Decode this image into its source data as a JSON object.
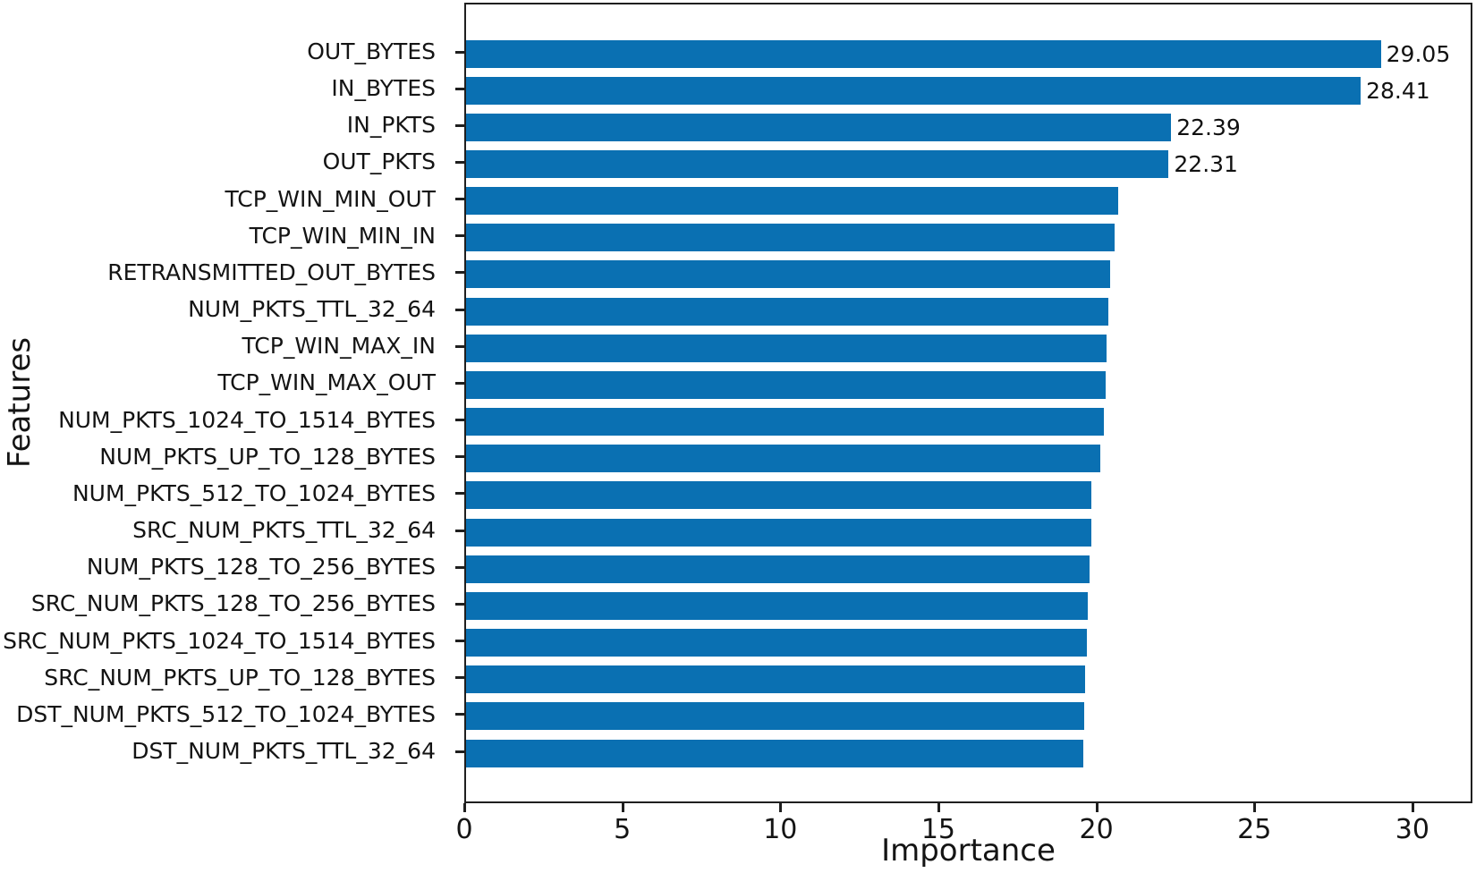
{
  "chart_data": {
    "type": "bar",
    "orientation": "horizontal",
    "title": "",
    "xlabel": "Importance",
    "ylabel": "Features",
    "xlim": [
      0,
      31.9
    ],
    "xticks": [
      0,
      5,
      10,
      15,
      20,
      25,
      30
    ],
    "grid": false,
    "legend": "none",
    "bar_color": "#0a70b2",
    "categories": [
      "OUT_BYTES",
      "IN_BYTES",
      "IN_PKTS",
      "OUT_PKTS",
      "TCP_WIN_MIN_OUT",
      "TCP_WIN_MIN_IN",
      "RETRANSMITTED_OUT_BYTES",
      "NUM_PKTS_TTL_32_64",
      "TCP_WIN_MAX_IN",
      "TCP_WIN_MAX_OUT",
      "NUM_PKTS_1024_TO_1514_BYTES",
      "NUM_PKTS_UP_TO_128_BYTES",
      "NUM_PKTS_512_TO_1024_BYTES",
      "SRC_NUM_PKTS_TTL_32_64",
      "NUM_PKTS_128_TO_256_BYTES",
      "SRC_NUM_PKTS_128_TO_256_BYTES",
      "SRC_NUM_PKTS_1024_TO_1514_BYTES",
      "SRC_NUM_PKTS_UP_TO_128_BYTES",
      "DST_NUM_PKTS_512_TO_1024_BYTES",
      "DST_NUM_PKTS_TTL_32_64"
    ],
    "values": [
      29.05,
      28.41,
      22.39,
      22.31,
      20.7,
      20.6,
      20.45,
      20.4,
      20.35,
      20.3,
      20.25,
      20.15,
      19.85,
      19.85,
      19.8,
      19.75,
      19.7,
      19.65,
      19.62,
      19.6
    ],
    "bar_value_labels": [
      "29.05",
      "28.41",
      "22.39",
      "22.31"
    ]
  }
}
